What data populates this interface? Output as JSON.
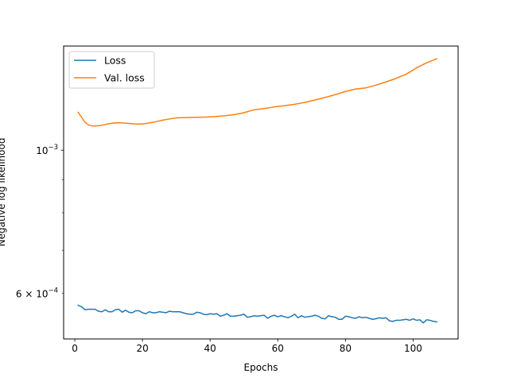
{
  "chart_data": {
    "type": "line",
    "title": "",
    "xlabel": "Epochs",
    "ylabel": "Negative log likelihood",
    "yscale": "log",
    "xlim": [
      -3.3,
      113.3
    ],
    "ylim": [
      0.00051,
      0.00145
    ],
    "x_ticks": [
      {
        "value": 0,
        "label": "0"
      },
      {
        "value": 20,
        "label": "20"
      },
      {
        "value": 40,
        "label": "40"
      },
      {
        "value": 60,
        "label": "60"
      },
      {
        "value": 80,
        "label": "80"
      },
      {
        "value": 100,
        "label": "100"
      }
    ],
    "y_major_ticks": [
      {
        "value": 0.001,
        "base": "10",
        "exp": "−3"
      }
    ],
    "y_minor_ticks": [
      {
        "value": 0.0006,
        "mantissa": "6",
        "base": "10",
        "exp": "−4"
      },
      {
        "value": 0.0007
      },
      {
        "value": 0.0008
      },
      {
        "value": 0.0009
      }
    ],
    "grid": false,
    "legend_position": "top-left",
    "series": [
      {
        "name": "Loss",
        "color": "#1f77b4",
        "x": [
          1,
          2,
          3,
          4,
          5,
          6,
          7,
          8,
          9,
          10,
          11,
          12,
          13,
          14,
          15,
          16,
          17,
          18,
          19,
          20,
          21,
          22,
          23,
          24,
          25,
          26,
          27,
          28,
          29,
          30,
          31,
          32,
          33,
          34,
          35,
          36,
          37,
          38,
          39,
          40,
          41,
          42,
          43,
          44,
          45,
          46,
          47,
          48,
          49,
          50,
          51,
          52,
          53,
          54,
          55,
          56,
          57,
          58,
          59,
          60,
          61,
          62,
          63,
          64,
          65,
          66,
          67,
          68,
          69,
          70,
          71,
          72,
          73,
          74,
          75,
          76,
          77,
          78,
          79,
          80,
          81,
          82,
          83,
          84,
          85,
          86,
          87,
          88,
          89,
          90,
          91,
          92,
          93,
          94,
          95,
          96,
          97,
          98,
          99,
          100,
          101,
          102,
          103,
          104,
          105,
          106,
          107
        ],
        "y": [
          0.000575,
          0.000572,
          0.000566,
          0.000567,
          0.000567,
          0.000567,
          0.000563,
          0.000562,
          0.000566,
          0.000562,
          0.000562,
          0.000566,
          0.000567,
          0.000561,
          0.000565,
          0.000561,
          0.00056,
          0.000564,
          0.000564,
          0.00056,
          0.000558,
          0.000562,
          0.00056,
          0.00056,
          0.000562,
          0.000561,
          0.00056,
          0.000563,
          0.000562,
          0.000562,
          0.000562,
          0.00056,
          0.000558,
          0.000557,
          0.000557,
          0.000561,
          0.00056,
          0.000557,
          0.000556,
          0.000558,
          0.000557,
          0.000558,
          0.000553,
          0.000555,
          0.000558,
          0.000553,
          0.000553,
          0.000554,
          0.000555,
          0.000557,
          0.000551,
          0.000552,
          0.000554,
          0.000553,
          0.000554,
          0.000555,
          0.000549,
          0.000553,
          0.000555,
          0.000552,
          0.000554,
          0.000552,
          0.00055,
          0.000553,
          0.000557,
          0.00055,
          0.000554,
          0.000551,
          0.000552,
          0.000553,
          0.000555,
          0.000553,
          0.000549,
          0.000548,
          0.000554,
          0.000552,
          0.000551,
          0.000547,
          0.000547,
          0.000553,
          0.000552,
          0.00055,
          0.000549,
          0.000552,
          0.00055,
          0.000551,
          0.000549,
          0.000547,
          0.000548,
          0.00055,
          0.000549,
          0.00055,
          0.000544,
          0.000543,
          0.000545,
          0.000545,
          0.000546,
          0.000547,
          0.000545,
          0.000548,
          0.000545,
          0.000546,
          0.00054,
          0.000546,
          0.000545,
          0.000543,
          0.000542
        ]
      },
      {
        "name": "Val. loss",
        "color": "#ff7f0e",
        "x": [
          1,
          2,
          3,
          4,
          5,
          6,
          8,
          10,
          12,
          14,
          16,
          18,
          20,
          22,
          24,
          26,
          28,
          30,
          32,
          35,
          38,
          41,
          44,
          47,
          50,
          53,
          56,
          59,
          62,
          65,
          68,
          71,
          74,
          77,
          80,
          83,
          86,
          89,
          92,
          95,
          98,
          101,
          104,
          107
        ],
        "y": [
          0.001145,
          0.001125,
          0.001105,
          0.001095,
          0.001091,
          0.00109,
          0.001093,
          0.001099,
          0.001103,
          0.001102,
          0.0011,
          0.001098,
          0.001098,
          0.001102,
          0.001107,
          0.001113,
          0.001118,
          0.001122,
          0.001123,
          0.001124,
          0.001125,
          0.001127,
          0.00113,
          0.001135,
          0.001143,
          0.001155,
          0.00116,
          0.001167,
          0.001172,
          0.001178,
          0.001186,
          0.001196,
          0.001207,
          0.001219,
          0.001233,
          0.001244,
          0.001249,
          0.001261,
          0.001276,
          0.001292,
          0.001312,
          0.001341,
          0.001366,
          0.001386
        ]
      }
    ]
  }
}
